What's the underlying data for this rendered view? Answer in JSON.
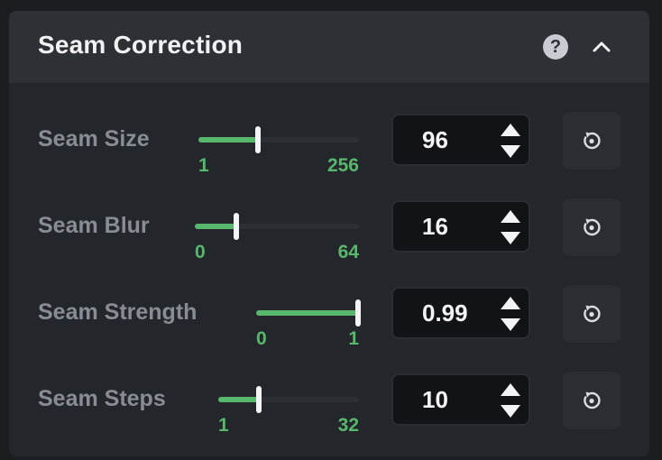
{
  "panel": {
    "title": "Seam Correction",
    "help_icon": "help-icon",
    "collapse_icon": "chevron-up-icon"
  },
  "rows": [
    {
      "label": "Seam Size",
      "min": "1",
      "max": "256",
      "value": "96",
      "fraction": 0.37
    },
    {
      "label": "Seam Blur",
      "min": "0",
      "max": "64",
      "value": "16",
      "fraction": 0.25
    },
    {
      "label": "Seam Strength",
      "min": "0",
      "max": "1",
      "value": "0.99",
      "fraction": 0.99
    },
    {
      "label": "Seam Steps",
      "min": "1",
      "max": "32",
      "value": "10",
      "fraction": 0.29
    }
  ],
  "icons": {
    "stepper_up": "triangle-up-icon",
    "stepper_down": "triangle-down-icon",
    "reset": "reset-icon"
  },
  "colors": {
    "accent": "#57b86b",
    "panel_bg": "#23262b",
    "header_bg": "#2d3035",
    "input_bg": "#121316"
  }
}
